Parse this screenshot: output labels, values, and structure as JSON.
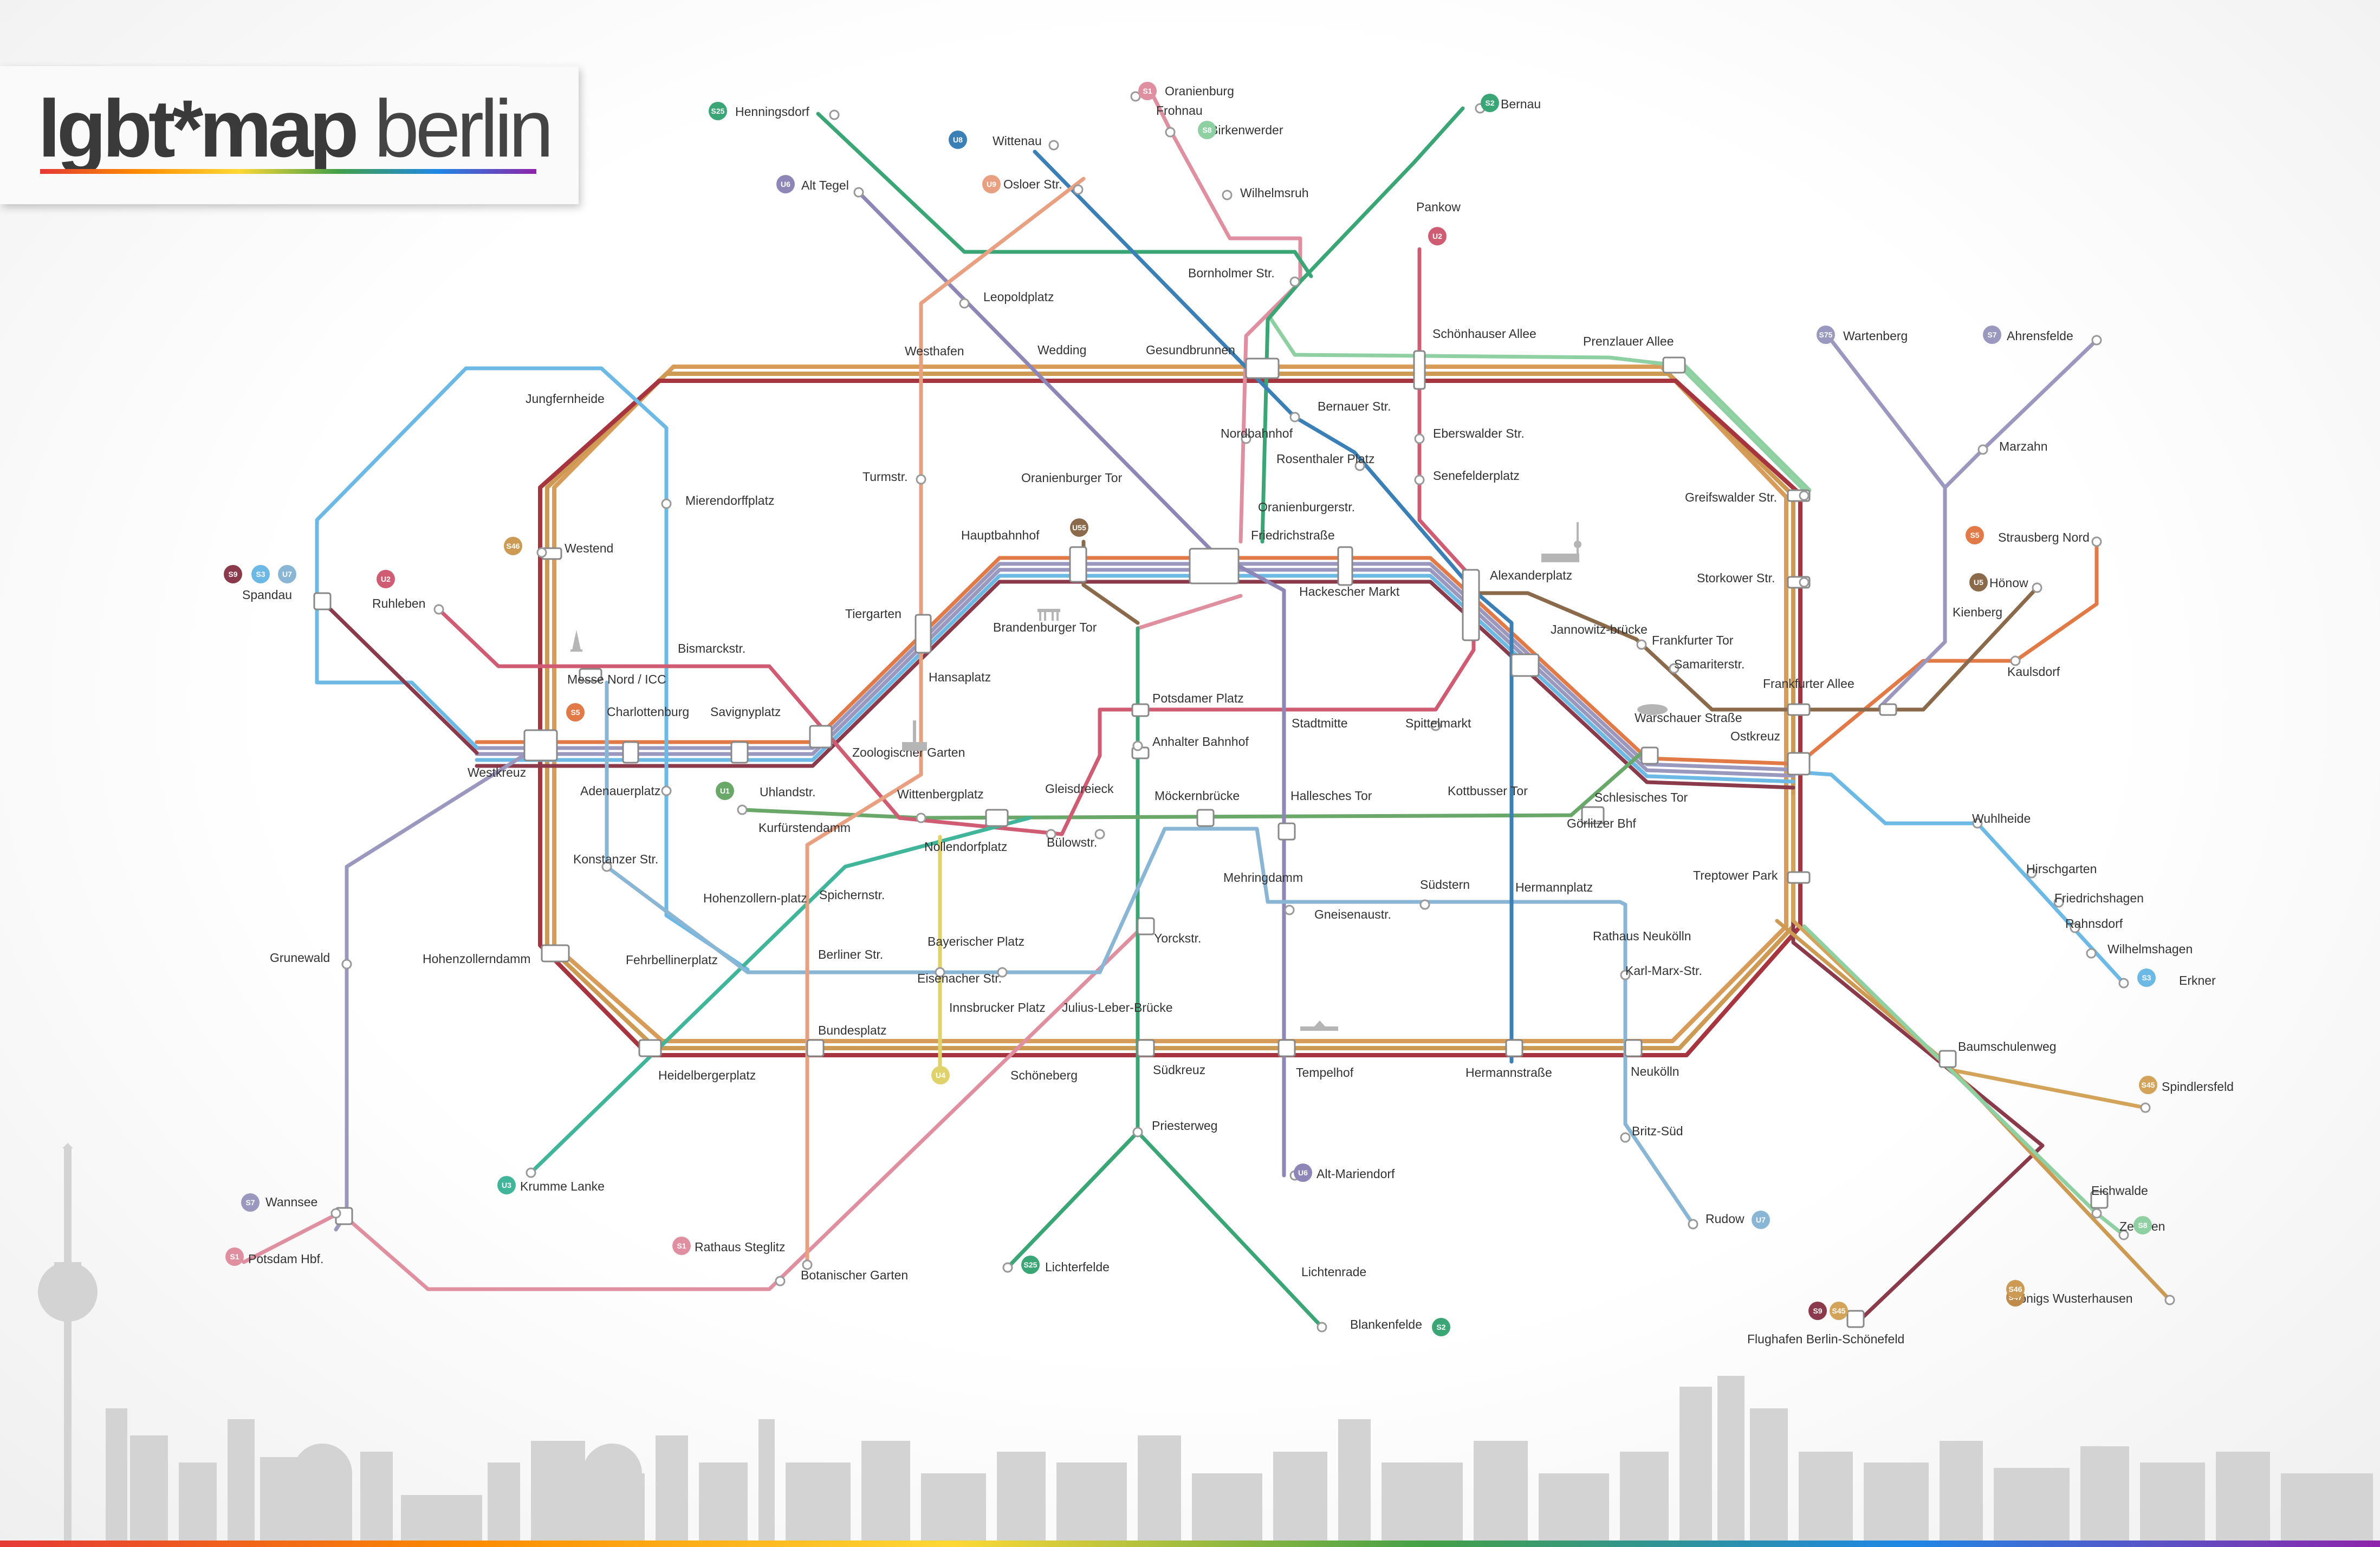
{
  "logo": {
    "bold": "lgbt*map",
    "light": " berlin"
  },
  "colors": {
    "s1": "#e08fa0",
    "s2": "#3aa676",
    "s25": "#3aa676",
    "s3": "#6cb9e6",
    "s41": "#a6353f",
    "s42": "#d89c5a",
    "s45": "#d4a35a",
    "s46": "#cc9a52",
    "s47": "#c08b4a",
    "s5": "#e27a48",
    "s7": "#9b98c0",
    "s75": "#9b98c0",
    "s8": "#8fd0a2",
    "s85": "#8fd0a2",
    "s9": "#8a3a4a",
    "u1": "#6aa86a",
    "u2": "#d05c74",
    "u3": "#40b59a",
    "u4": "#e0d26a",
    "u5": "#8a6a4a",
    "u55": "#8a6a4a",
    "u6": "#8e86b6",
    "u7": "#8ab6d6",
    "u8": "#3a7fb6",
    "u9": "#e8a080",
    "skyline": "#cfcfcf"
  },
  "icons": [
    "eiffel-tower-icon",
    "brandenburg-gate-icon",
    "tv-tower-icon",
    "victory-column-icon",
    "tempelhof-airport-icon",
    "stadium-icon",
    "city-skyline-icon"
  ],
  "line_tags": [
    {
      "text": "S25",
      "line": "s25"
    },
    {
      "text": "S1",
      "line": "s1"
    },
    {
      "text": "S8",
      "line": "s8"
    },
    {
      "text": "S2",
      "line": "s2"
    },
    {
      "text": "U8",
      "line": "u8"
    },
    {
      "text": "U9",
      "line": "u9"
    },
    {
      "text": "U6",
      "line": "u6"
    },
    {
      "text": "U2",
      "line": "u2"
    },
    {
      "text": "S75",
      "line": "s75"
    },
    {
      "text": "S7",
      "line": "s7"
    },
    {
      "text": "S5",
      "line": "s5"
    },
    {
      "text": "U5",
      "line": "u5"
    },
    {
      "text": "U55",
      "line": "u55"
    },
    {
      "text": "S9",
      "line": "s9"
    },
    {
      "text": "S3",
      "line": "s3"
    },
    {
      "text": "U7",
      "line": "u7"
    },
    {
      "text": "U2",
      "line": "u2"
    },
    {
      "text": "S46",
      "line": "s46"
    },
    {
      "text": "S5",
      "line": "s5"
    },
    {
      "text": "U1",
      "line": "u1"
    },
    {
      "text": "S45",
      "line": "s45"
    },
    {
      "text": "S8",
      "line": "s8"
    },
    {
      "text": "S3",
      "line": "s3"
    },
    {
      "text": "U3",
      "line": "u3"
    },
    {
      "text": "S7",
      "line": "s7"
    },
    {
      "text": "S1",
      "line": "s1"
    },
    {
      "text": "S1",
      "line": "s1"
    },
    {
      "text": "U4",
      "line": "u4"
    },
    {
      "text": "S25",
      "line": "s25"
    },
    {
      "text": "S2",
      "line": "s2"
    },
    {
      "text": "U6",
      "line": "u6"
    },
    {
      "text": "U7",
      "line": "u7"
    },
    {
      "text": "S9",
      "line": "s9"
    },
    {
      "text": "S45",
      "line": "s45"
    },
    {
      "text": "S47",
      "line": "s47"
    },
    {
      "text": "S46",
      "line": "s46"
    }
  ],
  "stations": [
    "Henningsdorf",
    "Oranienburg",
    "Frohnau",
    "Birkenwerder",
    "Bernau",
    "Wittenau",
    "Osloer Str.",
    "Alt Tegel",
    "Wilhelmsruh",
    "Pankow",
    "Bornholmer Str.",
    "Leopoldplatz",
    "Schönhauser Allee",
    "Prenzlauer Allee",
    "Wartenberg",
    "Ahrensfelde",
    "Westhafen",
    "Wedding",
    "Gesundbrunnen",
    "Jungfernheide",
    "Bernauer Str.",
    "Eberswalder Str.",
    "Marzahn",
    "Nordbahnhof",
    "Mierendorffplatz",
    "Turmstr.",
    "Oranienburger Tor",
    "Rosenthaler Platz",
    "Senefelderplatz",
    "Greifswalder Str.",
    "Strausberg Nord",
    "Oranienburgerstr.",
    "Westend",
    "Hauptbahnhof",
    "Friedrichstraße",
    "Hönow",
    "Spandau",
    "Ruhleben",
    "Alexanderplatz",
    "Storkower Str.",
    "Hackescher Markt",
    "Tiergarten",
    "Brandenburger Tor",
    "Kienberg",
    "Jannowitz-brücke",
    "Frankfurter Tor",
    "Bismarckstr.",
    "Samariterstr.",
    "Kaulsdorf",
    "Hansaplatz",
    "Messe Nord / ICC",
    "Frankfurter Allee",
    "Charlottenburg",
    "Savignyplatz",
    "Potsdamer Platz",
    "Stadtmitte",
    "Spittelmarkt",
    "Warschauer Straße",
    "Anhalter Bahnhof",
    "Ostkreuz",
    "Zoologischer Garten",
    "Westkreuz",
    "Gleisdreieck",
    "Adenauerplatz",
    "Uhlandstr.",
    "Wittenbergplatz",
    "Möckernbrücke",
    "Hallesches Tor",
    "Kottbusser Tor",
    "Schlesisches Tor",
    "Kurfürstendamm",
    "Görlitzer Bhf",
    "Wuhlheide",
    "Nollendorfplatz",
    "Bülowstr.",
    "Konstanzer Str.",
    "Mehringdamm",
    "Südstern",
    "Hermannplatz",
    "Hirschgarten",
    "Treptower Park",
    "Hohenzollern-platz",
    "Spichernstr.",
    "Friedrichshagen",
    "Gneisenaustr.",
    "Rahnsdorf",
    "Bayerischer Platz",
    "Rathaus Neukölln",
    "Yorckstr.",
    "Wilhelmshagen",
    "Grunewald",
    "Hohenzollerndamm",
    "Fehrbellinerplatz",
    "Berliner Str.",
    "Eisenacher Str.",
    "Karl-Marx-Str.",
    "Erkner",
    "Innsbrucker Platz",
    "Julius-Leber-Brücke",
    "Bundesplatz",
    "Baumschulenweg",
    "Heidelbergerplatz",
    "Schöneberg",
    "Südkreuz",
    "Tempelhof",
    "Hermannstraße",
    "Neukölln",
    "Spindlersfeld",
    "Priesterweg",
    "Britz-Süd",
    "Krumme Lanke",
    "Alt-Mariendorf",
    "Wannsee",
    "Eichwalde",
    "Rudow",
    "Zeuthen",
    "Potsdam Hbf.",
    "Rathaus Steglitz",
    "Botanischer Garten",
    "Lichterfelde",
    "Lichtenrade",
    "Königs Wusterhausen",
    "Flughafen Berlin-Schönefeld",
    "Blankenfelde"
  ]
}
